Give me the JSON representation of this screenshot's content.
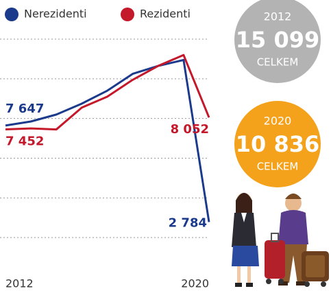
{
  "chart_data": {
    "type": "line",
    "categories": [
      "2012",
      null,
      null,
      null,
      null,
      null,
      null,
      null,
      "2020"
    ],
    "series": [
      {
        "name": "Nerezidenti",
        "color": "#1b3a8c",
        "values": [
          7647,
          7850,
          8200,
          8750,
          9400,
          10250,
          10650,
          10950,
          2784
        ],
        "value_labels": [
          "7 647",
          null,
          null,
          null,
          null,
          null,
          null,
          null,
          "2 784"
        ]
      },
      {
        "name": "Rezidenti",
        "color": "#c4182b",
        "values": [
          7452,
          7500,
          7450,
          8550,
          9100,
          9950,
          10650,
          11200,
          8052
        ],
        "value_labels": [
          "7 452",
          null,
          null,
          null,
          null,
          null,
          null,
          null,
          "8 052"
        ]
      }
    ],
    "ylim": [
      0,
      12000
    ],
    "yticks": [
      2000,
      4000,
      6000,
      8000,
      10000,
      12000
    ],
    "grid": true
  },
  "summary": [
    {
      "year": "2012",
      "total": "15 099",
      "label": "CELKEM",
      "color": "#b3b3b3"
    },
    {
      "year": "2020",
      "total": "10 836",
      "label": "CELKEM",
      "color": "#f4a21c"
    }
  ]
}
